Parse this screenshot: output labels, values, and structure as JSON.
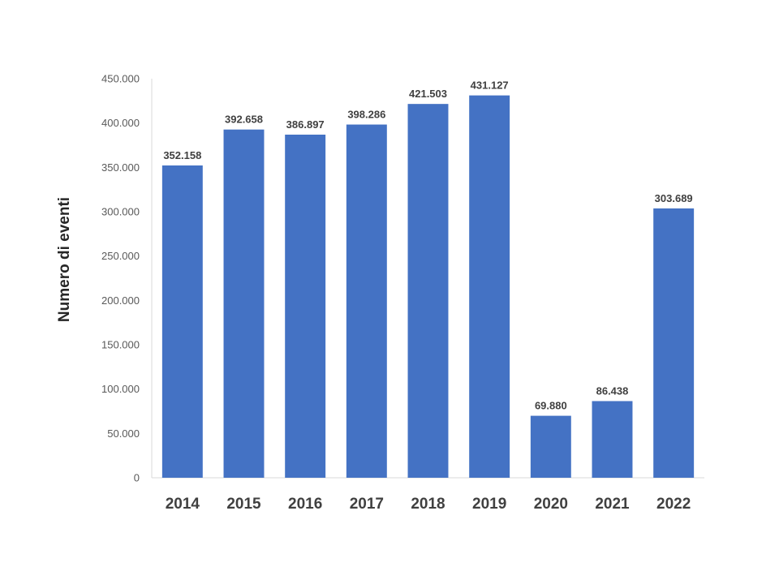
{
  "chart_data": {
    "type": "bar",
    "categories": [
      "2014",
      "2015",
      "2016",
      "2017",
      "2018",
      "2019",
      "2020",
      "2021",
      "2022"
    ],
    "values": [
      352158,
      392658,
      386897,
      398286,
      421503,
      431127,
      69880,
      86438,
      303689
    ],
    "data_labels": [
      "352.158",
      "392.658",
      "386.897",
      "398.286",
      "421.503",
      "431.127",
      "69.880",
      "86.438",
      "303.689"
    ],
    "ylabel": "Numero di eventi",
    "xlabel": "",
    "ylim": [
      0,
      450000
    ],
    "yticks": [
      0,
      50000,
      100000,
      150000,
      200000,
      250000,
      300000,
      350000,
      400000,
      450000
    ],
    "ytick_labels": [
      "0",
      "50.000",
      "100.000",
      "150.000",
      "200.000",
      "250.000",
      "300.000",
      "350.000",
      "400.000",
      "450.000"
    ],
    "grid": false,
    "legend": "none",
    "bar_color": "#4472C4"
  }
}
